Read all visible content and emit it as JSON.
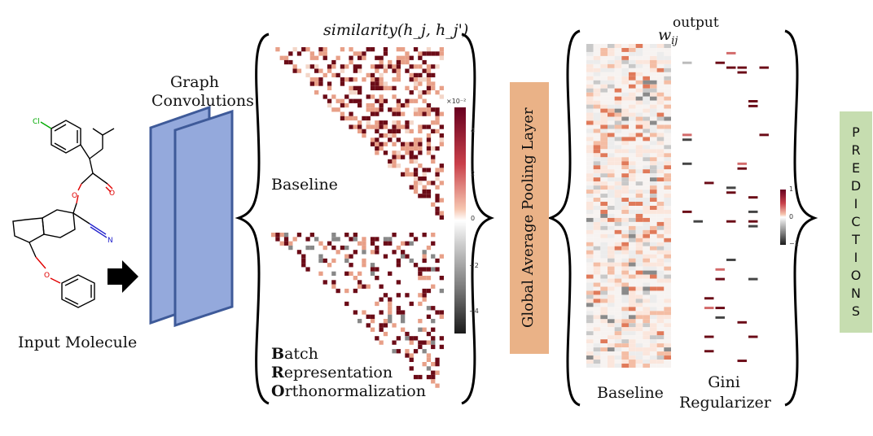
{
  "input": {
    "label": "Input Molecule"
  },
  "graph_conv": {
    "line1": "Graph",
    "line2": "Convolutions"
  },
  "similarity": {
    "title": "similarity(h_j, h_j')",
    "baseline_label": "Baseline",
    "bro_initials": [
      "B",
      "R",
      "O"
    ],
    "bro_rests": [
      "atch",
      "epresentation",
      "rthonormalization"
    ],
    "colorbar": {
      "exponent": "×10⁻²",
      "ticks": [
        "4",
        "2",
        "0",
        "−2",
        "−4"
      ]
    }
  },
  "pooling": {
    "label": "Global Average Pooling Layer",
    "color": "#eab287"
  },
  "weights": {
    "title_base": "w",
    "title_sub": "ij",
    "title_sup": "output",
    "baseline_label": "Baseline",
    "gini_line1": "Gini",
    "gini_line2": "Regularizer",
    "colorbar": {
      "ticks": [
        "1",
        "0",
        "−1"
      ]
    }
  },
  "predictions": {
    "letters": [
      "P",
      "R",
      "E",
      "D",
      "I",
      "C",
      "T",
      "I",
      "O",
      "N",
      "S"
    ],
    "color": "#c6ddb0"
  },
  "colors": {
    "dark_red": "#6b0b17",
    "light_red": "#e8a088",
    "gray": "#555555",
    "conv_fill": "#94a9dc",
    "conv_stroke": "#3e5a99"
  }
}
